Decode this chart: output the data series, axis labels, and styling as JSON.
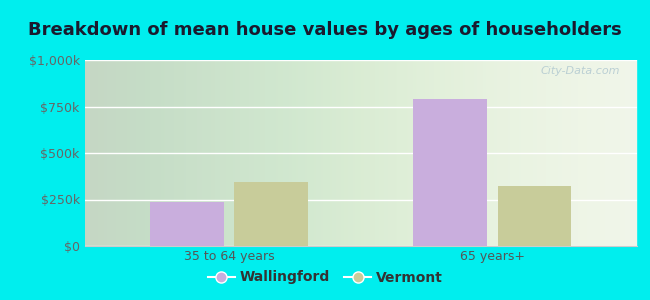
{
  "title": "Breakdown of mean house values by ages of householders",
  "categories": [
    "35 to 64 years",
    "65 years+"
  ],
  "wallingford_values": [
    235000,
    790000
  ],
  "vermont_values": [
    345000,
    320000
  ],
  "wallingford_color": "#c9aedd",
  "vermont_color": "#c8cc9a",
  "ylim": [
    0,
    1000000
  ],
  "yticks": [
    0,
    250000,
    500000,
    750000,
    1000000
  ],
  "ytick_labels": [
    "$0",
    "$250k",
    "$500k",
    "$750k",
    "$1,000k"
  ],
  "legend_labels": [
    "Wallingford",
    "Vermont"
  ],
  "background_color": "#00eeee",
  "plot_bg_color": "#e8f0e0",
  "title_fontsize": 13,
  "tick_fontsize": 9,
  "legend_fontsize": 10,
  "bar_width": 0.28,
  "watermark_text": "City-Data.com"
}
